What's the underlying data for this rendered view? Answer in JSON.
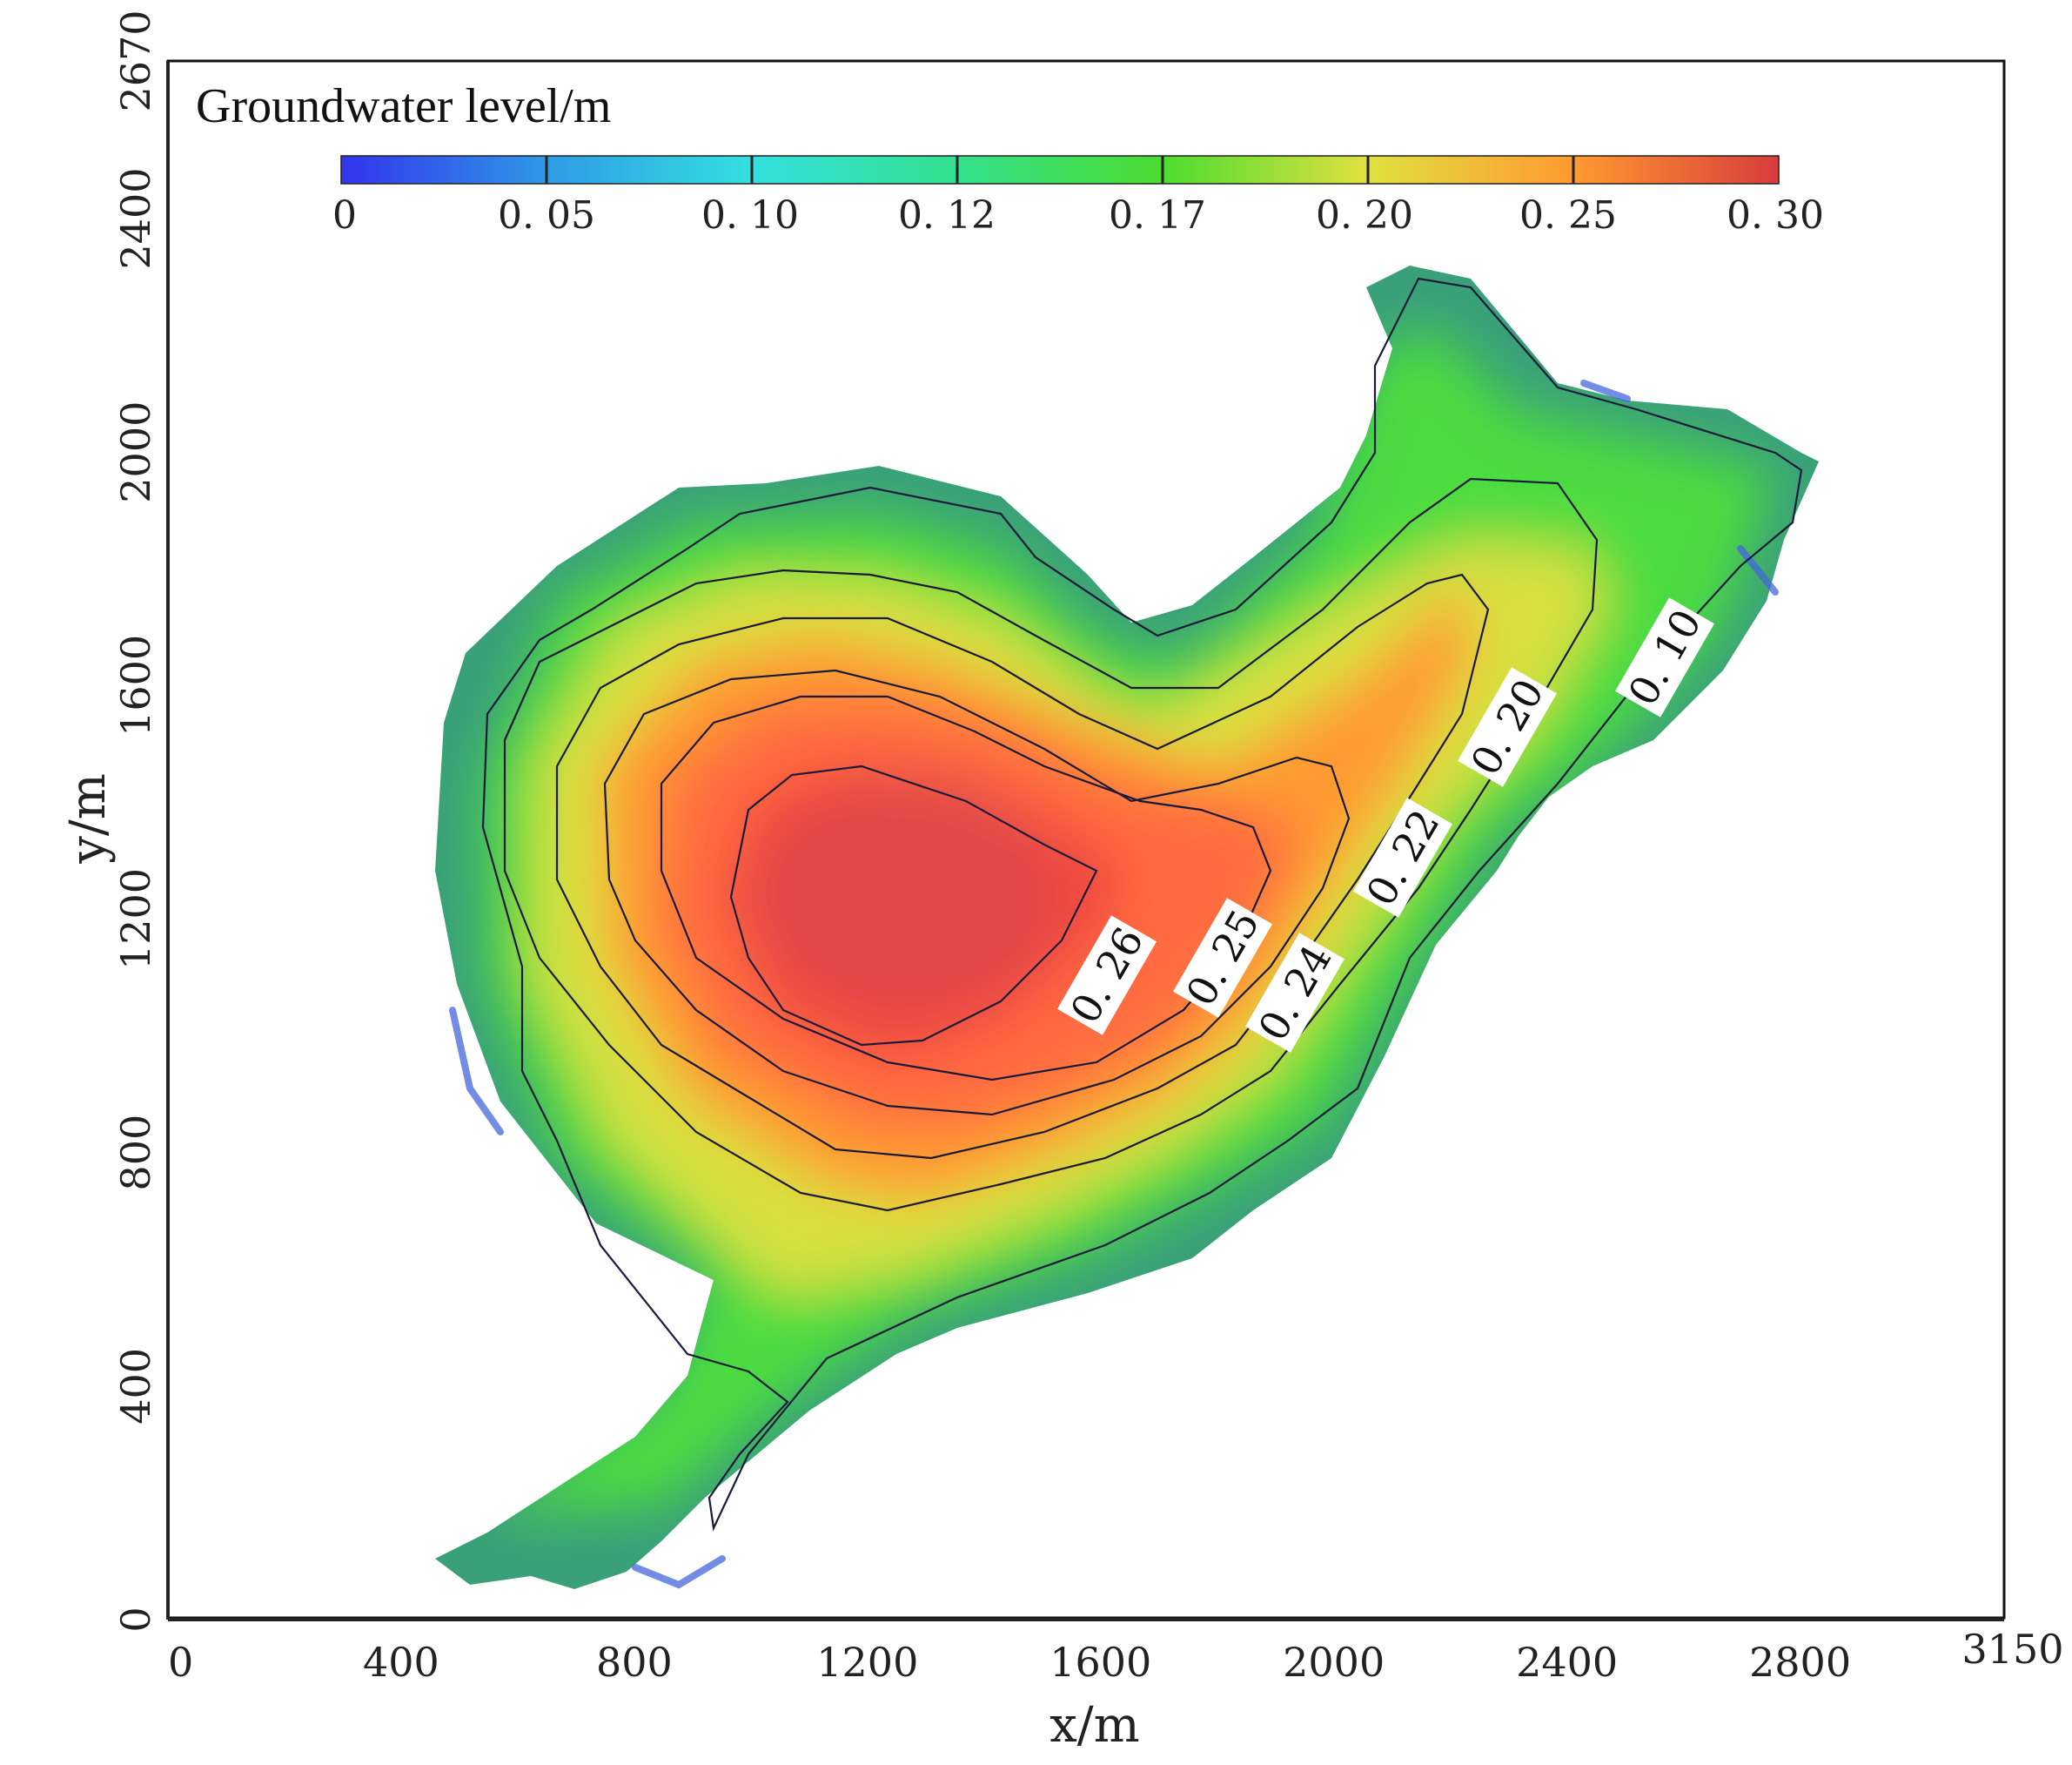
{
  "chart_data": {
    "type": "heatmap",
    "title": "Groundwater level/m",
    "xlabel": "x/m",
    "ylabel": "y/m",
    "xlim": [
      0,
      3150
    ],
    "ylim": [
      0,
      2670
    ],
    "x_ticks": [
      "0",
      "400",
      "800",
      "1200",
      "1600",
      "2000",
      "2400",
      "2800",
      "3150"
    ],
    "x_tick_values": [
      0,
      400,
      800,
      1200,
      1600,
      2000,
      2400,
      2800,
      3150
    ],
    "y_ticks": [
      "0",
      "400",
      "800",
      "1200",
      "1600",
      "2000",
      "2400",
      "2670"
    ],
    "y_tick_values": [
      0,
      400,
      800,
      1200,
      1600,
      2000,
      2400,
      2670
    ],
    "colorbar": {
      "labels": [
        "0",
        "0. 05",
        "0. 10",
        "0. 12",
        "0. 17",
        "0. 20",
        "0. 25",
        "0. 30"
      ],
      "values": [
        0,
        0.05,
        0.1,
        0.12,
        0.17,
        0.2,
        0.25,
        0.3
      ],
      "colors": [
        "#3333ee",
        "#2f9ae6",
        "#33e0e0",
        "#33e08c",
        "#4cdc30",
        "#e0e040",
        "#ff9a30",
        "#d83c3c"
      ]
    },
    "contour_labels": [
      {
        "text": "0. 26",
        "value": 0.26,
        "x": 1590,
        "y": 1140
      },
      {
        "text": "0. 25",
        "value": 0.25,
        "x": 1845,
        "y": 1055
      },
      {
        "text": "0. 24",
        "value": 0.24,
        "x": 1930,
        "y": 1020
      },
      {
        "text": "0. 22",
        "value": 0.22,
        "x": 2120,
        "y": 1320
      },
      {
        "text": "0. 20",
        "value": 0.2,
        "x": 2320,
        "y": 1520
      },
      {
        "text": "0. 10",
        "value": 0.1,
        "x": 2600,
        "y": 1625
      }
    ],
    "grid": false
  }
}
